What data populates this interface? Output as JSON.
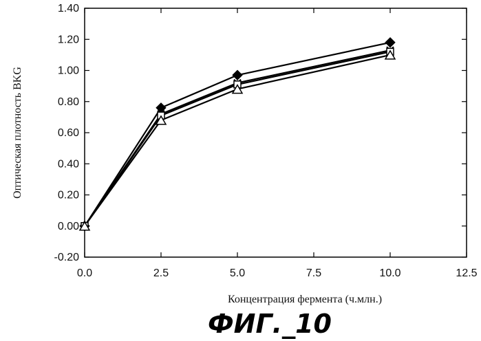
{
  "chart_data": {
    "type": "line",
    "title": "",
    "xlabel": "Концентрация фермента (ч.млн.)",
    "ylabel": "Оптическая плотность BKG",
    "xlim": [
      0.0,
      12.5
    ],
    "ylim": [
      -0.2,
      1.4
    ],
    "x_ticks": [
      "0.0",
      "2.5",
      "5.0",
      "7.5",
      "10.0",
      "12.5"
    ],
    "y_ticks": [
      "-0.20",
      "0.00",
      "0.20",
      "0.40",
      "0.60",
      "0.80",
      "1.00",
      "1.20",
      "1.40"
    ],
    "grid": false,
    "legend": "none",
    "x": [
      0,
      2.5,
      5,
      10
    ],
    "series": [
      {
        "marker": "filled-diamond",
        "values": [
          0.0,
          0.76,
          0.97,
          1.18
        ]
      },
      {
        "marker": "x-cross",
        "values": [
          0.0,
          0.72,
          0.92,
          1.13
        ]
      },
      {
        "marker": "open-square",
        "values": [
          0.0,
          0.71,
          0.91,
          1.12
        ]
      },
      {
        "marker": "open-triangle",
        "values": [
          0.0,
          0.68,
          0.88,
          1.1
        ]
      }
    ]
  },
  "caption": "ФИГ._10",
  "colors": {
    "ink": "#000000",
    "background": "#ffffff"
  }
}
